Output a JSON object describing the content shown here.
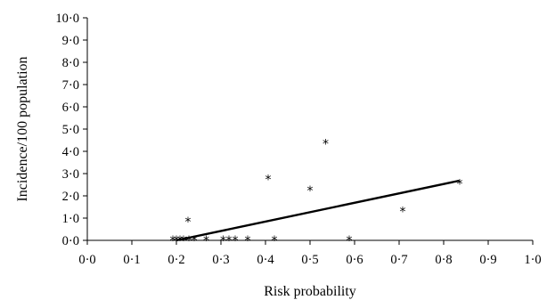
{
  "chart_data": {
    "type": "scatter",
    "xlabel": "Risk probability",
    "ylabel": "Incidence/100 population",
    "xlim": [
      0,
      1
    ],
    "ylim": [
      0,
      10
    ],
    "x_tick_labels": [
      "0·0",
      "0·1",
      "0·2",
      "0·3",
      "0·4",
      "0·5",
      "0·6",
      "0·7",
      "0·8",
      "0·9",
      "1·0"
    ],
    "y_tick_labels": [
      "0·0",
      "1·0",
      "2·0",
      "3·0",
      "4·0",
      "5·0",
      "6·0",
      "7·0",
      "8·0",
      "9·0",
      "10·0"
    ],
    "marker": "*",
    "series": [
      {
        "points": [
          {
            "x": 0.192,
            "y": 0.0
          },
          {
            "x": 0.2,
            "y": 0.0
          },
          {
            "x": 0.208,
            "y": 0.0
          },
          {
            "x": 0.216,
            "y": 0.0
          },
          {
            "x": 0.226,
            "y": 0.85
          },
          {
            "x": 0.228,
            "y": 0.0
          },
          {
            "x": 0.24,
            "y": 0.0
          },
          {
            "x": 0.267,
            "y": 0.0
          },
          {
            "x": 0.305,
            "y": 0.0
          },
          {
            "x": 0.318,
            "y": 0.0
          },
          {
            "x": 0.332,
            "y": 0.0
          },
          {
            "x": 0.36,
            "y": 0.0
          },
          {
            "x": 0.406,
            "y": 2.75
          },
          {
            "x": 0.42,
            "y": 0.0
          },
          {
            "x": 0.5,
            "y": 2.25
          },
          {
            "x": 0.535,
            "y": 4.35
          },
          {
            "x": 0.588,
            "y": 0.0
          },
          {
            "x": 0.708,
            "y": 1.3
          },
          {
            "x": 0.836,
            "y": 2.55
          }
        ]
      }
    ],
    "trendline": {
      "x": [
        0.2,
        0.835
      ],
      "y": [
        0.0,
        2.68
      ]
    },
    "grid": false,
    "legend": "none"
  }
}
